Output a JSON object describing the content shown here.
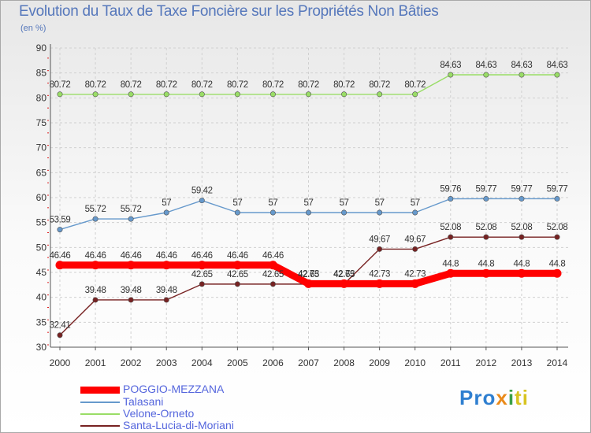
{
  "chart_data": {
    "type": "line",
    "title": "Evolution du Taux de Taxe Foncière sur les Propriétés Non Bâties",
    "subtitle": "(en %)",
    "xlabel": "",
    "ylabel": "(en %)",
    "ylim": [
      30,
      90
    ],
    "yticks": [
      30,
      35,
      40,
      45,
      50,
      55,
      60,
      65,
      70,
      75,
      80,
      85,
      90
    ],
    "x": [
      "2000",
      "2001",
      "2002",
      "2003",
      "2004",
      "2005",
      "2006",
      "2007",
      "2008",
      "2009",
      "2010",
      "2011",
      "2012",
      "2013",
      "2014"
    ],
    "grid": true,
    "legend_position": "bottom-left",
    "series": [
      {
        "name": "POGGIO-MEZZANA",
        "color": "#ff0000",
        "values": [
          46.46,
          46.46,
          46.46,
          46.46,
          46.46,
          46.46,
          46.46,
          42.73,
          42.73,
          42.73,
          42.73,
          44.8,
          44.8,
          44.8,
          44.8
        ],
        "labels": [
          "46.46",
          "46.46",
          "46.46",
          "46.46",
          "46.46",
          "46.46",
          "46.46",
          "42.73",
          "42.73",
          "42.73",
          "42.73",
          "44.8",
          "44.8",
          "44.8",
          "44.8"
        ]
      },
      {
        "name": "Talasani",
        "color": "#6699cc",
        "values": [
          53.59,
          55.72,
          55.72,
          57,
          59.42,
          57,
          57,
          57,
          57,
          57,
          57,
          59.76,
          59.77,
          59.77,
          59.77
        ],
        "labels": [
          "53.59",
          "55.72",
          "55.72",
          "57",
          "59.42",
          "57",
          "57",
          "57",
          "57",
          "57",
          "57",
          "59.76",
          "59.77",
          "59.77",
          "59.77"
        ]
      },
      {
        "name": "Velone-Orneto",
        "color": "#99dd66",
        "values": [
          80.72,
          80.72,
          80.72,
          80.72,
          80.72,
          80.72,
          80.72,
          80.72,
          80.72,
          80.72,
          80.72,
          84.63,
          84.63,
          84.63,
          84.63
        ],
        "labels": [
          "80.72",
          "80.72",
          "80.72",
          "80.72",
          "80.72",
          "80.72",
          "80.72",
          "80.72",
          "80.72",
          "80.72",
          "80.72",
          "84.63",
          "84.63",
          "84.63",
          "84.63"
        ]
      },
      {
        "name": "Santa-Lucia-di-Moriani",
        "color": "#772222",
        "values": [
          32.41,
          39.48,
          39.48,
          39.48,
          42.65,
          42.65,
          42.65,
          42.65,
          42.65,
          49.67,
          49.67,
          52.08,
          52.08,
          52.08,
          52.08
        ],
        "labels": [
          "32.41",
          "39.48",
          "39.48",
          "39.48",
          "42.65",
          "42.65",
          "42.65",
          "42.65",
          "42.65",
          "49.67",
          "49.67",
          "52.08",
          "52.08",
          "52.08",
          "52.08"
        ]
      }
    ]
  },
  "legend": {
    "items": [
      {
        "label": "POGGIO-MEZZANA",
        "color": "#ff0000"
      },
      {
        "label": "Talasani",
        "color": "#6699cc"
      },
      {
        "label": "Velone-Orneto",
        "color": "#99dd66"
      },
      {
        "label": "Santa-Lucia-di-Moriani",
        "color": "#772222"
      }
    ]
  },
  "logo": {
    "parts": [
      "Pro",
      "x",
      "i",
      "ti"
    ],
    "full_text": "Proxiti"
  }
}
